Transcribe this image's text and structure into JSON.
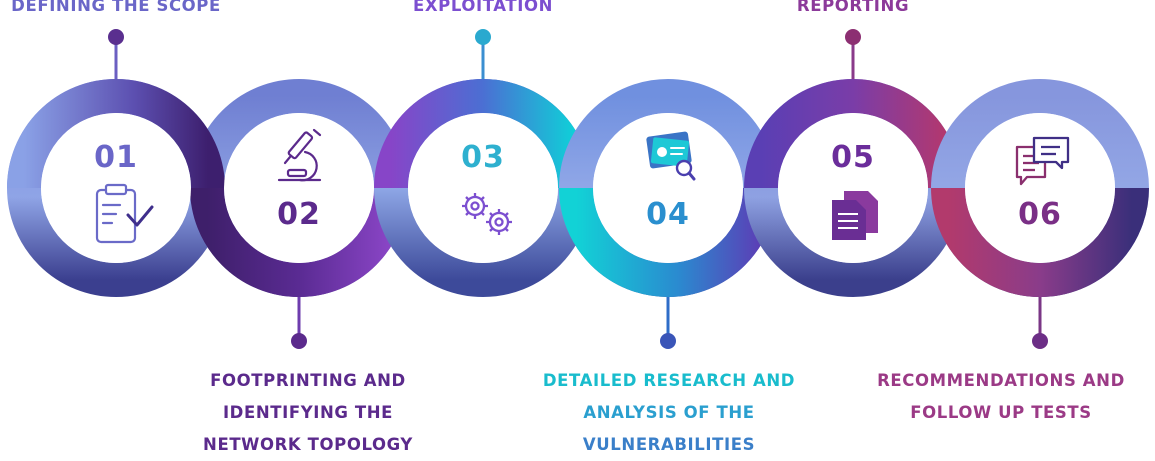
{
  "steps": [
    {
      "number": "01",
      "label_lines": [
        "DEFINING THE SCOPE"
      ],
      "icon": "clipboard-check-icon",
      "color": "#6a66c8"
    },
    {
      "number": "02",
      "label_lines": [
        "FOOTPRINTING AND",
        "IDENTIFYING THE",
        "NETWORK TOPOLOGY"
      ],
      "icon": "microscope-icon",
      "color": "#5b2a8c"
    },
    {
      "number": "03",
      "label_lines": [
        "EXPLOITATION"
      ],
      "icon": "gears-icon",
      "color": "#7c4fd0"
    },
    {
      "number": "04",
      "label_lines": [
        "DETAILED RESEARCH AND",
        "ANALYSIS OF THE",
        "VULNERABILITIES"
      ],
      "icon": "report-analysis-icon",
      "color": "#1fb3c9"
    },
    {
      "number": "05",
      "label_lines": [
        "REPORTING"
      ],
      "icon": "documents-icon",
      "color": "#6b2d9b"
    },
    {
      "number": "06",
      "label_lines": [
        "RECOMMENDATIONS AND",
        "FOLLOW UP TESTS"
      ],
      "icon": "chat-bubbles-icon",
      "color": "#9b3a86"
    }
  ]
}
